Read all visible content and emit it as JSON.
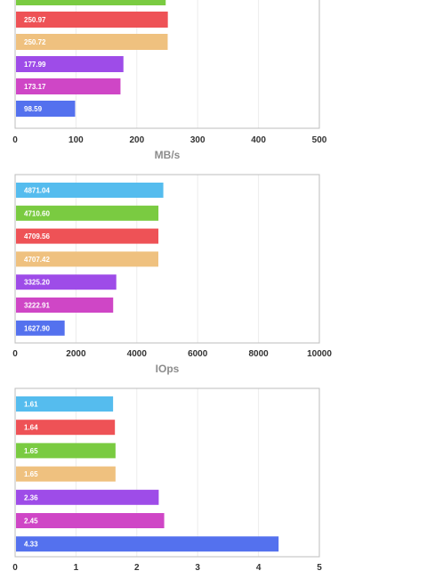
{
  "chart_data": [
    {
      "type": "bar",
      "orientation": "horizontal",
      "values": [
        247.46,
        250.97,
        250.72,
        177.99,
        173.17,
        98.59
      ],
      "labels": [
        "",
        "250.97",
        "250.72",
        "177.99",
        "173.17",
        "98.59"
      ],
      "colors": [
        "#7acb41",
        "#ee5256",
        "#efc17f",
        "#9e4ce8",
        "#cf46c6",
        "#5471ee"
      ],
      "xlim": [
        0,
        500
      ],
      "xticks": [
        "0",
        "100",
        "200",
        "300",
        "400",
        "500"
      ],
      "xlabel": "MB/s",
      "grid": true
    },
    {
      "type": "bar",
      "orientation": "horizontal",
      "values": [
        4871.04,
        4710.6,
        4709.56,
        4707.42,
        3325.2,
        3222.91,
        1627.9
      ],
      "labels": [
        "4871.04",
        "4710.60",
        "4709.56",
        "4707.42",
        "3325.20",
        "3222.91",
        "1627.90"
      ],
      "colors": [
        "#55bcee",
        "#7acb41",
        "#ee5256",
        "#efc17f",
        "#9e4ce8",
        "#cf46c6",
        "#5471ee"
      ],
      "xlim": [
        0,
        10000
      ],
      "xticks": [
        "0",
        "2000",
        "4000",
        "6000",
        "8000",
        "10000"
      ],
      "xlabel": "IOps",
      "grid": true
    },
    {
      "type": "bar",
      "orientation": "horizontal",
      "values": [
        1.61,
        1.64,
        1.65,
        1.65,
        2.36,
        2.45,
        4.33
      ],
      "labels": [
        "1.61",
        "1.64",
        "1.65",
        "1.65",
        "2.36",
        "2.45",
        "4.33"
      ],
      "colors": [
        "#55bcee",
        "#ee5256",
        "#7acb41",
        "#efc17f",
        "#9e4ce8",
        "#cf46c6",
        "#5471ee"
      ],
      "xlim": [
        0,
        5
      ],
      "xticks": [
        "0",
        "1",
        "2",
        "3",
        "4",
        "5"
      ],
      "xlabel": "",
      "grid": true
    }
  ]
}
